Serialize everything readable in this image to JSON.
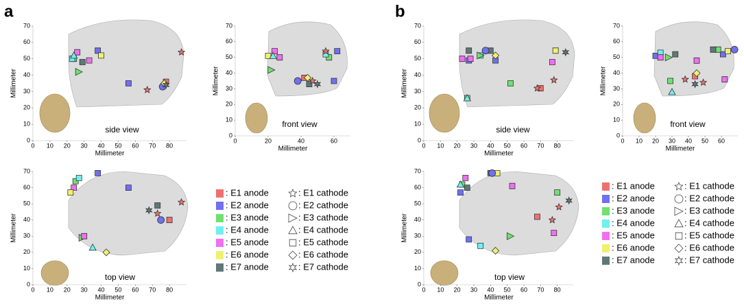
{
  "chart_data": [
    {
      "type": "scatter",
      "panel": "a",
      "view": "side view",
      "xlabel": "Millimeter",
      "ylabel": "Millimeter",
      "xlim": [
        0,
        90
      ],
      "ylim": [
        0,
        70
      ],
      "xticks": [
        0,
        10,
        20,
        30,
        40,
        50,
        60,
        70,
        80
      ],
      "yticks": [
        0,
        10,
        20,
        30,
        40,
        50,
        60,
        70
      ],
      "series": [
        {
          "color": "#f07070",
          "marker": "square",
          "x": [
            78
          ],
          "y": [
            36
          ]
        },
        {
          "color": "#7070f0",
          "marker": "square",
          "x": [
            56,
            38
          ],
          "y": [
            35,
            55
          ]
        },
        {
          "color": "#70e070",
          "marker": "square",
          "x": [
            24
          ],
          "y": [
            50
          ]
        },
        {
          "color": "#70f0f0",
          "marker": "square",
          "x": [
            23
          ],
          "y": [
            50
          ]
        },
        {
          "color": "#f070f0",
          "marker": "square",
          "x": [
            26
          ],
          "y": [
            54
          ]
        },
        {
          "color": "#f0f070",
          "marker": "square",
          "x": [
            40
          ],
          "y": [
            52
          ]
        },
        {
          "color": "#607878",
          "marker": "square",
          "x": [
            29
          ],
          "y": [
            48
          ]
        },
        {
          "color": "#f07070",
          "marker": "star",
          "x": [
            87,
            67
          ],
          "y": [
            54,
            31
          ]
        },
        {
          "color": "#7070f0",
          "marker": "circle",
          "x": [
            76
          ],
          "y": [
            33
          ]
        },
        {
          "color": "#70e070",
          "marker": "triangle-right",
          "x": [
            27
          ],
          "y": [
            42
          ]
        },
        {
          "color": "#70f0f0",
          "marker": "triangle-up",
          "x": [
            24
          ],
          "y": [
            52
          ]
        },
        {
          "color": "#f070f0",
          "marker": "square",
          "x": [
            33
          ],
          "y": [
            49
          ]
        },
        {
          "color": "#f0f070",
          "marker": "diamond",
          "x": [
            77
          ],
          "y": [
            35
          ]
        },
        {
          "color": "#607878",
          "marker": "hexagram",
          "x": [
            78
          ],
          "y": [
            34
          ]
        }
      ]
    },
    {
      "type": "scatter",
      "view": "front view",
      "xlabel": "Millimeter",
      "ylabel": "Millimeter",
      "xlim": [
        0,
        70
      ],
      "ylim": [
        0,
        70
      ],
      "xticks": [
        0,
        20,
        40,
        60
      ],
      "yticks": [
        0,
        10,
        20,
        30,
        40,
        50,
        60,
        70
      ],
      "series": [
        {
          "color": "#f07070",
          "marker": "square",
          "x": [
            42
          ],
          "y": [
            37
          ]
        },
        {
          "color": "#7070f0",
          "marker": "square",
          "x": [
            60,
            62
          ],
          "y": [
            35,
            54
          ]
        },
        {
          "color": "#70e070",
          "marker": "square",
          "x": [
            57
          ],
          "y": [
            50
          ]
        },
        {
          "color": "#70f0f0",
          "marker": "square",
          "x": [
            55
          ],
          "y": [
            52
          ]
        },
        {
          "color": "#f070f0",
          "marker": "square",
          "x": [
            24
          ],
          "y": [
            54
          ]
        },
        {
          "color": "#f0f070",
          "marker": "square",
          "x": [
            20
          ],
          "y": [
            51
          ]
        },
        {
          "color": "#607878",
          "marker": "square",
          "x": [
            45
          ],
          "y": [
            33
          ]
        },
        {
          "color": "#f07070",
          "marker": "star",
          "x": [
            47,
            55
          ],
          "y": [
            35,
            54
          ]
        },
        {
          "color": "#7070f0",
          "marker": "circle",
          "x": [
            38
          ],
          "y": [
            35
          ]
        },
        {
          "color": "#70e070",
          "marker": "triangle-right",
          "x": [
            22
          ],
          "y": [
            42
          ]
        },
        {
          "color": "#70f0f0",
          "marker": "triangle-up",
          "x": [
            23
          ],
          "y": [
            51
          ]
        },
        {
          "color": "#f070f0",
          "marker": "square",
          "x": [
            27
          ],
          "y": [
            50
          ]
        },
        {
          "color": "#f0f070",
          "marker": "diamond",
          "x": [
            44
          ],
          "y": [
            37
          ]
        },
        {
          "color": "#607878",
          "marker": "hexagram",
          "x": [
            50
          ],
          "y": [
            33
          ]
        }
      ]
    },
    {
      "type": "scatter",
      "view": "top view",
      "xlabel": "Millimeter",
      "ylabel": "Millimeter",
      "legend": true,
      "xlim": [
        0,
        90
      ],
      "ylim": [
        0,
        70
      ],
      "xticks": [
        0,
        10,
        20,
        30,
        40,
        50,
        60,
        70,
        80
      ],
      "yticks": [
        0,
        10,
        20,
        30,
        40,
        50,
        60,
        70
      ],
      "series": [
        {
          "name": ": E1 anode",
          "color": "#f07070",
          "marker": "square",
          "x": [
            80
          ],
          "y": [
            40
          ]
        },
        {
          "name": ": E2 anode",
          "color": "#7070f0",
          "marker": "square",
          "x": [
            56,
            38
          ],
          "y": [
            60,
            69
          ]
        },
        {
          "name": ": E3 anode",
          "color": "#70e070",
          "marker": "square",
          "x": [
            25
          ],
          "y": [
            64
          ]
        },
        {
          "name": ": E4 anode",
          "color": "#70f0f0",
          "marker": "square",
          "x": [
            27
          ],
          "y": [
            66
          ]
        },
        {
          "name": ": E5 anode",
          "color": "#f070f0",
          "marker": "square",
          "x": [
            24
          ],
          "y": [
            60
          ]
        },
        {
          "name": ": E6 anode",
          "color": "#f0f070",
          "marker": "square",
          "x": [
            22
          ],
          "y": [
            57
          ]
        },
        {
          "name": ": E7 anode",
          "color": "#607878",
          "marker": "square",
          "x": [
            73
          ],
          "y": [
            49
          ]
        },
        {
          "name": ": E1 cathode",
          "color": "#f07070",
          "marker": "star",
          "x": [
            87,
            73
          ],
          "y": [
            51,
            44
          ]
        },
        {
          "name": ": E2 cathode",
          "color": "#7070f0",
          "marker": "circle",
          "x": [
            75
          ],
          "y": [
            40
          ]
        },
        {
          "name": ": E3 cathode",
          "color": "#70e070",
          "marker": "triangle-right",
          "x": [
            29
          ],
          "y": [
            29
          ]
        },
        {
          "name": ": E4 cathode",
          "color": "#70f0f0",
          "marker": "triangle-up",
          "x": [
            35
          ],
          "y": [
            23
          ]
        },
        {
          "name": ": E5 cathode",
          "color": "#f070f0",
          "marker": "square",
          "x": [
            30
          ],
          "y": [
            30
          ]
        },
        {
          "name": ": E6 cathode",
          "color": "#f0f070",
          "marker": "diamond",
          "x": [
            43
          ],
          "y": [
            20
          ]
        },
        {
          "name": ": E7 cathode",
          "color": "#607878",
          "marker": "hexagram",
          "x": [
            68
          ],
          "y": [
            46
          ]
        }
      ]
    },
    {
      "type": "scatter",
      "panel": "b",
      "view": "side view",
      "xlabel": "Millimeter",
      "ylabel": "Millimeter",
      "xlim": [
        0,
        90
      ],
      "ylim": [
        0,
        70
      ],
      "xticks": [
        0,
        10,
        20,
        30,
        40,
        50,
        60,
        70,
        80
      ],
      "yticks": [
        0,
        10,
        20,
        30,
        40,
        50,
        60,
        70
      ],
      "series": [
        {
          "color": "#f07070",
          "marker": "square",
          "x": [
            70
          ],
          "y": [
            32
          ]
        },
        {
          "color": "#7070f0",
          "marker": "square",
          "x": [
            27,
            43
          ],
          "y": [
            49,
            49
          ]
        },
        {
          "color": "#70e070",
          "marker": "square",
          "x": [
            26,
            52
          ],
          "y": [
            26,
            35
          ]
        },
        {
          "color": "#70f0f0",
          "marker": "square",
          "x": [
            34
          ],
          "y": [
            52
          ]
        },
        {
          "color": "#f070f0",
          "marker": "square",
          "x": [
            77,
            28
          ],
          "y": [
            48,
            50
          ]
        },
        {
          "color": "#f0f070",
          "marker": "square",
          "x": [
            79
          ],
          "y": [
            55
          ]
        },
        {
          "color": "#607878",
          "marker": "square",
          "x": [
            27,
            40
          ],
          "y": [
            55,
            55
          ]
        },
        {
          "color": "#f07070",
          "marker": "star",
          "x": [
            68,
            78
          ],
          "y": [
            32,
            37
          ]
        },
        {
          "color": "#7070f0",
          "marker": "circle",
          "x": [
            37
          ],
          "y": [
            55
          ]
        },
        {
          "color": "#70e070",
          "marker": "triangle-right",
          "x": [
            34
          ],
          "y": [
            52
          ]
        },
        {
          "color": "#70f0f0",
          "marker": "triangle-up",
          "x": [
            26
          ],
          "y": [
            26
          ]
        },
        {
          "color": "#f070f0",
          "marker": "square",
          "x": [
            23
          ],
          "y": [
            50
          ]
        },
        {
          "color": "#f0f070",
          "marker": "diamond",
          "x": [
            43
          ],
          "y": [
            52
          ]
        },
        {
          "color": "#607878",
          "marker": "hexagram",
          "x": [
            85
          ],
          "y": [
            54
          ]
        }
      ]
    },
    {
      "type": "scatter",
      "view": "front view",
      "xlabel": "Millimeter",
      "ylabel": "Millimeter",
      "xlim": [
        0,
        70
      ],
      "ylim": [
        0,
        70
      ],
      "xticks": [
        0,
        10,
        20,
        30,
        40,
        50,
        60
      ],
      "yticks": [
        0,
        10,
        20,
        30,
        40,
        50,
        60,
        70
      ],
      "series": [
        {
          "color": "#f07070",
          "marker": "square",
          "x": [
            44
          ],
          "y": [
            38
          ]
        },
        {
          "color": "#7070f0",
          "marker": "square",
          "x": [
            20,
            61
          ],
          "y": [
            51,
            52
          ]
        },
        {
          "color": "#70e070",
          "marker": "square",
          "x": [
            29,
            58
          ],
          "y": [
            35,
            55
          ]
        },
        {
          "color": "#70f0f0",
          "marker": "square",
          "x": [
            23
          ],
          "y": [
            53
          ]
        },
        {
          "color": "#f070f0",
          "marker": "square",
          "x": [
            45,
            62
          ],
          "y": [
            48,
            36
          ]
        },
        {
          "color": "#f0f070",
          "marker": "square",
          "x": [
            64
          ],
          "y": [
            54
          ]
        },
        {
          "color": "#607878",
          "marker": "square",
          "x": [
            32,
            55
          ],
          "y": [
            52,
            55
          ]
        },
        {
          "color": "#f07070",
          "marker": "star",
          "x": [
            38,
            49
          ],
          "y": [
            36,
            34
          ]
        },
        {
          "color": "#7070f0",
          "marker": "circle",
          "x": [
            68
          ],
          "y": [
            55
          ]
        },
        {
          "color": "#70e070",
          "marker": "triangle-right",
          "x": [
            28
          ],
          "y": [
            50
          ]
        },
        {
          "color": "#70f0f0",
          "marker": "triangle-up",
          "x": [
            30
          ],
          "y": [
            28
          ]
        },
        {
          "color": "#f070f0",
          "marker": "square",
          "x": [
            23
          ],
          "y": [
            50
          ]
        },
        {
          "color": "#f0f070",
          "marker": "diamond",
          "x": [
            45
          ],
          "y": [
            40
          ]
        },
        {
          "color": "#607878",
          "marker": "hexagram",
          "x": [
            44
          ],
          "y": [
            33
          ]
        }
      ]
    },
    {
      "type": "scatter",
      "view": "top view",
      "xlabel": "Millimeter",
      "ylabel": "Millimeter",
      "legend": true,
      "xlim": [
        0,
        90
      ],
      "ylim": [
        0,
        70
      ],
      "xticks": [
        0,
        10,
        20,
        30,
        40,
        50,
        60,
        70,
        80
      ],
      "yticks": [
        0,
        10,
        20,
        30,
        40,
        50,
        60,
        70
      ],
      "series": [
        {
          "name": ": E1 anode",
          "color": "#f07070",
          "marker": "square",
          "x": [
            68
          ],
          "y": [
            42
          ]
        },
        {
          "name": ": E2 anode",
          "color": "#7070f0",
          "marker": "square",
          "x": [
            22,
            27
          ],
          "y": [
            57,
            28
          ]
        },
        {
          "name": ": E3 anode",
          "color": "#70e070",
          "marker": "square",
          "x": [
            23,
            80
          ],
          "y": [
            62,
            57
          ]
        },
        {
          "name": ": E4 anode",
          "color": "#70f0f0",
          "marker": "square",
          "x": [
            34
          ],
          "y": [
            24
          ]
        },
        {
          "name": ": E5 anode",
          "color": "#f070f0",
          "marker": "square",
          "x": [
            53,
            78
          ],
          "y": [
            61,
            32
          ]
        },
        {
          "name": ": E6 anode",
          "color": "#f0f070",
          "marker": "square",
          "x": [
            44
          ],
          "y": [
            69
          ]
        },
        {
          "name": ": E7 anode",
          "color": "#607878",
          "marker": "square",
          "x": [
            26,
            40
          ],
          "y": [
            60,
            69
          ]
        },
        {
          "name": ": E1 cathode",
          "color": "#f07070",
          "marker": "star",
          "x": [
            77,
            81
          ],
          "y": [
            40,
            48
          ]
        },
        {
          "name": ": E2 cathode",
          "color": "#7070f0",
          "marker": "circle",
          "x": [
            41
          ],
          "y": [
            69
          ]
        },
        {
          "name": ": E3 cathode",
          "color": "#70e070",
          "marker": "triangle-right",
          "x": [
            52
          ],
          "y": [
            30
          ]
        },
        {
          "name": ": E4 cathode",
          "color": "#70f0f0",
          "marker": "triangle-up",
          "x": [
            22
          ],
          "y": [
            62
          ]
        },
        {
          "name": ": E5 cathode",
          "color": "#f070f0",
          "marker": "square",
          "x": [
            25
          ],
          "y": [
            66
          ]
        },
        {
          "name": ": E6 cathode",
          "color": "#f0f070",
          "marker": "diamond",
          "x": [
            43
          ],
          "y": [
            21
          ]
        },
        {
          "name": ": E7 cathode",
          "color": "#607878",
          "marker": "hexagram",
          "x": [
            87
          ],
          "y": [
            52
          ]
        }
      ]
    }
  ]
}
